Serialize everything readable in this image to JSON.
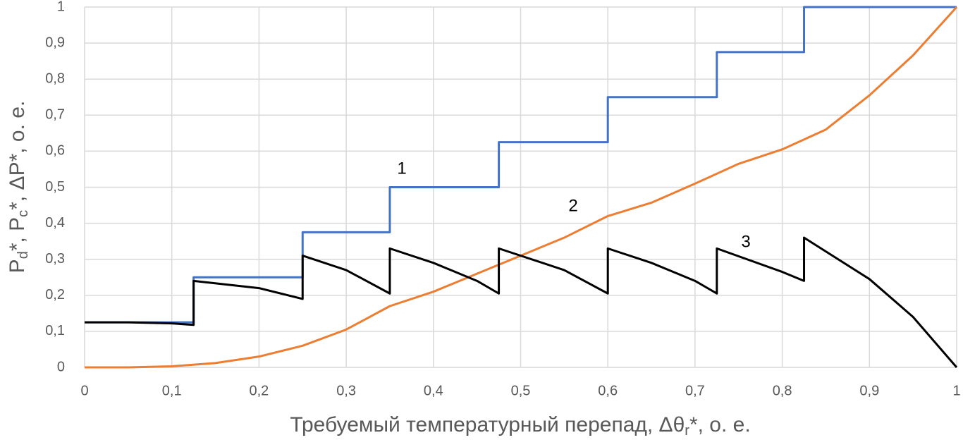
{
  "chart_data": {
    "type": "line",
    "xlabel": [
      "Требуемый температурный перепад, Δθ",
      "r",
      "*, о. е."
    ],
    "ylabel": [
      "P",
      "d",
      "*, P",
      "c",
      "*, ΔP*, о. е."
    ],
    "xlim": [
      0,
      1
    ],
    "ylim": [
      0,
      1
    ],
    "xticks": [
      0,
      {
        "value": 0.1,
        "label": "0,1"
      },
      {
        "value": 0.2,
        "label": "0,2"
      },
      {
        "value": 0.3,
        "label": "0,3"
      },
      {
        "value": 0.4,
        "label": "0,4"
      },
      {
        "value": 0.5,
        "label": "0,5"
      },
      {
        "value": 0.6,
        "label": "0,6"
      },
      {
        "value": 0.7,
        "label": "0,7"
      },
      {
        "value": 0.8,
        "label": "0,8"
      },
      {
        "value": 0.9,
        "label": "0,9"
      },
      1
    ],
    "yticks": [
      0,
      {
        "value": 0.1,
        "label": "0,1"
      },
      {
        "value": 0.2,
        "label": "0,2"
      },
      {
        "value": 0.3,
        "label": "0,3"
      },
      {
        "value": 0.4,
        "label": "0,4"
      },
      {
        "value": 0.5,
        "label": "0,5"
      },
      {
        "value": 0.6,
        "label": "0,6"
      },
      {
        "value": 0.7,
        "label": "0,7"
      },
      {
        "value": 0.8,
        "label": "0,8"
      },
      {
        "value": 0.9,
        "label": "0,9"
      },
      1
    ],
    "grid": true,
    "series": [
      {
        "color": "#4472c4",
        "x": [
          0,
          0.125,
          0.125,
          0.25,
          0.25,
          0.35,
          0.35,
          0.475,
          0.475,
          0.6,
          0.6,
          0.725,
          0.725,
          0.825,
          0.825,
          1
        ],
        "values": [
          0.125,
          0.125,
          0.25,
          0.25,
          0.375,
          0.375,
          0.5,
          0.5,
          0.625,
          0.625,
          0.75,
          0.75,
          0.875,
          0.875,
          1,
          1
        ]
      },
      {
        "color": "#ed7d31",
        "x": [
          0,
          0.05,
          0.1,
          0.15,
          0.2,
          0.25,
          0.3,
          0.35,
          0.4,
          0.45,
          0.5,
          0.55,
          0.6,
          0.65,
          0.7,
          0.75,
          0.8,
          0.85,
          0.9,
          0.95,
          1
        ],
        "values": [
          0,
          0,
          0.003,
          0.012,
          0.03,
          0.06,
          0.105,
          0.17,
          0.21,
          0.26,
          0.31,
          0.36,
          0.42,
          0.457,
          0.51,
          0.565,
          0.605,
          0.66,
          0.755,
          0.866,
          1
        ]
      },
      {
        "color": "#000000",
        "x": [
          0,
          0.05,
          0.1,
          0.125,
          0.125,
          0.2,
          0.25,
          0.25,
          0.3,
          0.35,
          0.35,
          0.4,
          0.45,
          0.475,
          0.475,
          0.55,
          0.6,
          0.6,
          0.65,
          0.7,
          0.725,
          0.725,
          0.8,
          0.825,
          0.825,
          0.9,
          0.95,
          1
        ],
        "values": [
          0.125,
          0.125,
          0.122,
          0.118,
          0.24,
          0.22,
          0.19,
          0.31,
          0.27,
          0.205,
          0.33,
          0.29,
          0.24,
          0.205,
          0.33,
          0.27,
          0.205,
          0.33,
          0.29,
          0.24,
          0.205,
          0.33,
          0.265,
          0.24,
          0.36,
          0.245,
          0.14,
          0
        ]
      }
    ],
    "annotations": [
      "1",
      "2",
      "3"
    ]
  }
}
